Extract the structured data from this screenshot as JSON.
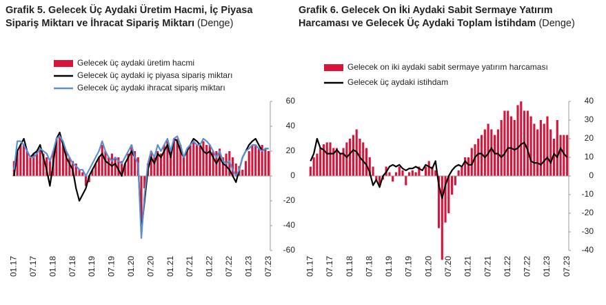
{
  "chart_data": [
    {
      "type": "combo",
      "title": "Grafik 5. Gelecek Üç Aydaki Üretim Hacmi, İç Piyasa Sipariş Miktarı ve İhracat Sipariş Miktarı",
      "subtitle": "(Denge)",
      "categories": [
        "01.17",
        null,
        null,
        null,
        null,
        null,
        "07.17",
        null,
        null,
        null,
        null,
        null,
        "01.18",
        null,
        null,
        null,
        null,
        null,
        "07.18",
        null,
        null,
        null,
        null,
        null,
        "01.19",
        null,
        null,
        null,
        null,
        null,
        "07.19",
        null,
        null,
        null,
        null,
        null,
        "01.20",
        null,
        null,
        null,
        null,
        null,
        "07.20",
        null,
        null,
        null,
        null,
        null,
        "01.21",
        null,
        null,
        null,
        null,
        null,
        "07.21",
        null,
        null,
        null,
        null,
        null,
        "01.22",
        null,
        null,
        null,
        null,
        null,
        "07.22",
        null,
        null,
        null,
        null,
        null,
        "01.23",
        null,
        null,
        null,
        null,
        null,
        "07.23"
      ],
      "ylim": [
        -60,
        60
      ],
      "yticks": [
        -60,
        -40,
        -20,
        0,
        20,
        40,
        60
      ],
      "series": [
        {
          "name": "Gelecek üç aydaki üretim hacmi",
          "type": "bar",
          "color": "#d7153a",
          "values": [
            12,
            20,
            25,
            25,
            20,
            15,
            18,
            20,
            22,
            18,
            15,
            12,
            20,
            30,
            32,
            25,
            20,
            15,
            12,
            10,
            5,
            3,
            -8,
            -5,
            5,
            10,
            15,
            25,
            20,
            15,
            18,
            15,
            15,
            12,
            10,
            18,
            25,
            20,
            15,
            -40,
            -10,
            10,
            20,
            15,
            20,
            18,
            25,
            28,
            20,
            30,
            30,
            25,
            15,
            20,
            25,
            28,
            25,
            25,
            28,
            25,
            25,
            20,
            20,
            22,
            15,
            18,
            20,
            15,
            10,
            8,
            5,
            12,
            20,
            25,
            25,
            22,
            25,
            22,
            20
          ]
        },
        {
          "name": "Gelecek üç aydaki iç piyasa sipariş miktarı",
          "type": "line",
          "color": "#000000",
          "values": [
            0,
            20,
            25,
            30,
            20,
            15,
            18,
            20,
            25,
            15,
            5,
            -8,
            10,
            30,
            35,
            25,
            15,
            10,
            5,
            -10,
            -20,
            -15,
            -10,
            0,
            5,
            10,
            15,
            18,
            12,
            10,
            8,
            10,
            5,
            0,
            10,
            15,
            20,
            15,
            10,
            -45,
            -20,
            5,
            15,
            10,
            18,
            15,
            20,
            25,
            15,
            30,
            28,
            20,
            15,
            20,
            25,
            30,
            28,
            25,
            20,
            18,
            20,
            15,
            10,
            15,
            10,
            8,
            5,
            0,
            -5,
            5,
            15,
            20,
            25,
            28,
            30,
            25,
            20,
            22,
            22
          ]
        },
        {
          "name": "Gelecek üç aydaki ihracat sipariş miktarı",
          "type": "line",
          "color": "#5b8fd1",
          "values": [
            5,
            28,
            28,
            25,
            20,
            15,
            15,
            18,
            22,
            20,
            18,
            12,
            20,
            30,
            32,
            28,
            20,
            15,
            10,
            8,
            5,
            5,
            0,
            5,
            10,
            15,
            20,
            28,
            20,
            15,
            12,
            15,
            12,
            10,
            15,
            20,
            25,
            15,
            10,
            -50,
            -15,
            10,
            20,
            15,
            25,
            20,
            25,
            30,
            20,
            30,
            32,
            25,
            15,
            22,
            25,
            28,
            25,
            25,
            30,
            28,
            25,
            20,
            15,
            20,
            12,
            10,
            12,
            5,
            0,
            5,
            15,
            20,
            22,
            25,
            25,
            22,
            20,
            22,
            22
          ]
        }
      ]
    },
    {
      "type": "combo",
      "title": "Grafik 6. Gelecek On İki Aydaki Sabit Sermaye Yatırım Harcaması ve Gelecek Üç Aydaki Toplam İstihdam",
      "subtitle": "(Denge)",
      "categories": [
        "01.17",
        null,
        null,
        null,
        null,
        null,
        "07.17",
        null,
        null,
        null,
        null,
        null,
        "01.18",
        null,
        null,
        null,
        null,
        null,
        "07.18",
        null,
        null,
        null,
        null,
        null,
        "01.19",
        null,
        null,
        null,
        null,
        null,
        "07.19",
        null,
        null,
        null,
        null,
        null,
        "01.20",
        null,
        null,
        null,
        null,
        null,
        "07.20",
        null,
        null,
        null,
        null,
        null,
        "01.21",
        null,
        null,
        null,
        null,
        null,
        "07.21",
        null,
        null,
        null,
        null,
        null,
        "01.22",
        null,
        null,
        null,
        null,
        null,
        "07.22",
        null,
        null,
        null,
        null,
        null,
        "01.23",
        null,
        null,
        null,
        null,
        null,
        "07.23"
      ],
      "ylim": [
        -40,
        40
      ],
      "yticks": [
        -40,
        -30,
        -20,
        -10,
        0,
        10,
        20,
        30,
        40
      ],
      "series": [
        {
          "name": "Gelecek on iki aydaki sabit sermaye yatırım harcaması",
          "type": "bar",
          "color": "#d7153a",
          "values": [
            5,
            10,
            12,
            15,
            17,
            18,
            18,
            15,
            15,
            12,
            15,
            18,
            20,
            22,
            25,
            20,
            18,
            15,
            10,
            5,
            -3,
            -5,
            -2,
            5,
            2,
            -3,
            2,
            5,
            3,
            -5,
            2,
            3,
            2,
            5,
            0,
            5,
            8,
            5,
            3,
            -28,
            -45,
            -25,
            -20,
            -10,
            -5,
            3,
            5,
            10,
            10,
            15,
            17,
            20,
            22,
            25,
            28,
            25,
            22,
            25,
            30,
            35,
            35,
            32,
            30,
            38,
            40,
            35,
            35,
            32,
            28,
            25,
            30,
            28,
            32,
            25,
            20,
            30,
            22,
            22,
            22
          ]
        },
        {
          "name": "Gelecek üç aydaki istihdam",
          "type": "line",
          "color": "#000000",
          "values": [
            8,
            12,
            20,
            15,
            14,
            12,
            12,
            12,
            14,
            12,
            12,
            10,
            12,
            14,
            13,
            10,
            8,
            6,
            2,
            -5,
            -2,
            -6,
            0,
            2,
            5,
            6,
            5,
            6,
            4,
            3,
            4,
            4,
            5,
            4,
            3,
            6,
            5,
            4,
            8,
            -5,
            -12,
            -5,
            0,
            3,
            5,
            6,
            5,
            8,
            6,
            6,
            10,
            12,
            12,
            10,
            12,
            15,
            12,
            12,
            10,
            12,
            15,
            15,
            14,
            15,
            17,
            18,
            14,
            8,
            7,
            7,
            6,
            8,
            10,
            7,
            12,
            10,
            15,
            12,
            10
          ]
        }
      ]
    }
  ]
}
